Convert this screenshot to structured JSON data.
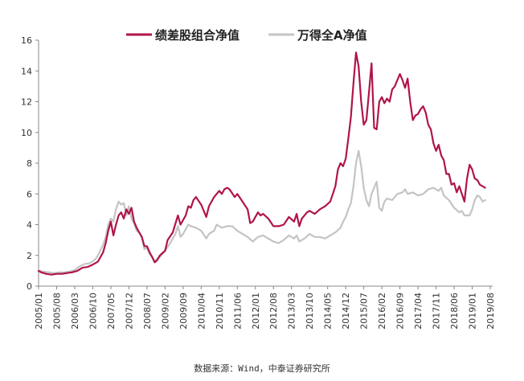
{
  "chart_data": {
    "type": "line",
    "title": "",
    "xlabel": "",
    "ylabel": "",
    "ylim": [
      0,
      16
    ],
    "yticks": [
      "0",
      "2",
      "4",
      "6",
      "8",
      "10",
      "12",
      "14",
      "16"
    ],
    "xticks": [
      "2005/01",
      "2005/08",
      "2006/03",
      "2006/10",
      "2007/05",
      "2007/12",
      "2008/07",
      "2009/02",
      "2009/09",
      "2010/04",
      "2010/11",
      "2011/06",
      "2012/01",
      "2012/08",
      "2013/03",
      "2013/10",
      "2014/05",
      "2014/12",
      "2015/07",
      "2016/02",
      "2016/09",
      "2017/04",
      "2017/11",
      "2018/06",
      "2019/01",
      "2019/08"
    ],
    "legend_position": "top-center",
    "grid": false,
    "series": [
      {
        "name": "绩差股组合净值",
        "color": "#b0144a",
        "points": [
          [
            "2005/01",
            1.0
          ],
          [
            "2005/02",
            0.9
          ],
          [
            "2005/04",
            0.8
          ],
          [
            "2005/06",
            0.75
          ],
          [
            "2005/08",
            0.8
          ],
          [
            "2005/10",
            0.8
          ],
          [
            "2005/12",
            0.85
          ],
          [
            "2006/02",
            0.9
          ],
          [
            "2006/04",
            1.0
          ],
          [
            "2006/06",
            1.2
          ],
          [
            "2006/08",
            1.25
          ],
          [
            "2006/10",
            1.4
          ],
          [
            "2006/12",
            1.6
          ],
          [
            "2007/02",
            2.2
          ],
          [
            "2007/03",
            2.8
          ],
          [
            "2007/04",
            3.6
          ],
          [
            "2007/05",
            4.2
          ],
          [
            "2007/06",
            3.3
          ],
          [
            "2007/07",
            4.0
          ],
          [
            "2007/08",
            4.6
          ],
          [
            "2007/09",
            4.8
          ],
          [
            "2007/10",
            4.4
          ],
          [
            "2007/11",
            5.0
          ],
          [
            "2007/12",
            4.7
          ],
          [
            "2008/01",
            5.1
          ],
          [
            "2008/02",
            4.2
          ],
          [
            "2008/03",
            3.8
          ],
          [
            "2008/04",
            3.5
          ],
          [
            "2008/05",
            3.2
          ],
          [
            "2008/06",
            2.6
          ],
          [
            "2008/07",
            2.6
          ],
          [
            "2008/08",
            2.2
          ],
          [
            "2008/09",
            1.9
          ],
          [
            "2008/10",
            1.55
          ],
          [
            "2008/11",
            1.7
          ],
          [
            "2008/12",
            2.0
          ],
          [
            "2009/02",
            2.3
          ],
          [
            "2009/03",
            3.0
          ],
          [
            "2009/05",
            3.5
          ],
          [
            "2009/07",
            4.6
          ],
          [
            "2009/08",
            4.0
          ],
          [
            "2009/09",
            4.3
          ],
          [
            "2009/10",
            4.6
          ],
          [
            "2009/11",
            5.2
          ],
          [
            "2009/12",
            5.1
          ],
          [
            "2010/01",
            5.6
          ],
          [
            "2010/02",
            5.8
          ],
          [
            "2010/04",
            5.3
          ],
          [
            "2010/06",
            4.5
          ],
          [
            "2010/07",
            5.2
          ],
          [
            "2010/09",
            5.8
          ],
          [
            "2010/11",
            6.2
          ],
          [
            "2010/12",
            6.0
          ],
          [
            "2011/01",
            6.3
          ],
          [
            "2011/02",
            6.4
          ],
          [
            "2011/03",
            6.3
          ],
          [
            "2011/05",
            5.8
          ],
          [
            "2011/06",
            6.0
          ],
          [
            "2011/08",
            5.5
          ],
          [
            "2011/10",
            5.0
          ],
          [
            "2011/11",
            4.1
          ],
          [
            "2011/12",
            4.2
          ],
          [
            "2012/02",
            4.8
          ],
          [
            "2012/03",
            4.6
          ],
          [
            "2012/04",
            4.7
          ],
          [
            "2012/06",
            4.4
          ],
          [
            "2012/08",
            3.9
          ],
          [
            "2012/10",
            3.9
          ],
          [
            "2012/12",
            4.0
          ],
          [
            "2013/02",
            4.5
          ],
          [
            "2013/04",
            4.2
          ],
          [
            "2013/05",
            4.7
          ],
          [
            "2013/06",
            3.9
          ],
          [
            "2013/07",
            4.4
          ],
          [
            "2013/09",
            4.8
          ],
          [
            "2013/10",
            4.9
          ],
          [
            "2013/12",
            4.7
          ],
          [
            "2014/02",
            5.0
          ],
          [
            "2014/04",
            5.2
          ],
          [
            "2014/06",
            5.5
          ],
          [
            "2014/07",
            6.0
          ],
          [
            "2014/08",
            6.5
          ],
          [
            "2014/09",
            7.6
          ],
          [
            "2014/10",
            8.0
          ],
          [
            "2014/11",
            7.8
          ],
          [
            "2014/12",
            8.3
          ],
          [
            "2015/01",
            9.6
          ],
          [
            "2015/02",
            11.0
          ],
          [
            "2015/03",
            13.2
          ],
          [
            "2015/04",
            15.2
          ],
          [
            "2015/05",
            14.3
          ],
          [
            "2015/06",
            12.0
          ],
          [
            "2015/07",
            10.5
          ],
          [
            "2015/08",
            10.8
          ],
          [
            "2015/09",
            12.6
          ],
          [
            "2015/10",
            14.5
          ],
          [
            "2015/11",
            10.3
          ],
          [
            "2015/12",
            10.2
          ],
          [
            "2016/01",
            12.0
          ],
          [
            "2016/02",
            12.3
          ],
          [
            "2016/03",
            11.9
          ],
          [
            "2016/04",
            12.2
          ],
          [
            "2016/05",
            12.0
          ],
          [
            "2016/06",
            12.8
          ],
          [
            "2016/07",
            13.0
          ],
          [
            "2016/08",
            13.4
          ],
          [
            "2016/09",
            13.8
          ],
          [
            "2016/10",
            13.4
          ],
          [
            "2016/11",
            12.9
          ],
          [
            "2016/12",
            13.5
          ],
          [
            "2017/01",
            12.0
          ],
          [
            "2017/02",
            10.8
          ],
          [
            "2017/03",
            11.1
          ],
          [
            "2017/04",
            11.2
          ],
          [
            "2017/05",
            11.5
          ],
          [
            "2017/06",
            11.7
          ],
          [
            "2017/07",
            11.3
          ],
          [
            "2017/08",
            10.5
          ],
          [
            "2017/09",
            10.2
          ],
          [
            "2017/10",
            9.3
          ],
          [
            "2017/11",
            8.8
          ],
          [
            "2017/12",
            9.2
          ],
          [
            "2018/01",
            8.5
          ],
          [
            "2018/02",
            8.2
          ],
          [
            "2018/03",
            7.3
          ],
          [
            "2018/04",
            7.3
          ],
          [
            "2018/05",
            6.6
          ],
          [
            "2018/06",
            6.7
          ],
          [
            "2018/07",
            6.1
          ],
          [
            "2018/08",
            6.5
          ],
          [
            "2018/09",
            6.0
          ],
          [
            "2018/10",
            5.5
          ],
          [
            "2018/11",
            7.0
          ],
          [
            "2018/12",
            7.9
          ],
          [
            "2019/01",
            7.6
          ],
          [
            "2019/02",
            7.0
          ],
          [
            "2019/03",
            6.9
          ],
          [
            "2019/04",
            6.6
          ],
          [
            "2019/05",
            6.5
          ],
          [
            "2019/06",
            6.4
          ]
        ]
      },
      {
        "name": "万得全A净值",
        "color": "#c4c4c4",
        "points": [
          [
            "2005/01",
            1.0
          ],
          [
            "2005/03",
            0.95
          ],
          [
            "2005/05",
            0.9
          ],
          [
            "2005/07",
            0.85
          ],
          [
            "2005/09",
            0.9
          ],
          [
            "2005/11",
            0.9
          ],
          [
            "2006/01",
            0.95
          ],
          [
            "2006/03",
            1.05
          ],
          [
            "2006/05",
            1.3
          ],
          [
            "2006/07",
            1.45
          ],
          [
            "2006/09",
            1.5
          ],
          [
            "2006/11",
            1.75
          ],
          [
            "2006/12",
            2.0
          ],
          [
            "2007/02",
            2.7
          ],
          [
            "2007/03",
            3.2
          ],
          [
            "2007/04",
            4.0
          ],
          [
            "2007/05",
            4.4
          ],
          [
            "2007/06",
            4.2
          ],
          [
            "2007/07",
            5.0
          ],
          [
            "2007/08",
            5.5
          ],
          [
            "2007/09",
            5.3
          ],
          [
            "2007/10",
            5.4
          ],
          [
            "2007/11",
            4.6
          ],
          [
            "2007/12",
            5.2
          ],
          [
            "2008/01",
            4.4
          ],
          [
            "2008/02",
            4.1
          ],
          [
            "2008/03",
            3.6
          ],
          [
            "2008/04",
            3.5
          ],
          [
            "2008/05",
            3.2
          ],
          [
            "2008/06",
            2.4
          ],
          [
            "2008/07",
            2.5
          ],
          [
            "2008/08",
            2.1
          ],
          [
            "2008/09",
            1.9
          ],
          [
            "2008/10",
            1.6
          ],
          [
            "2008/11",
            1.8
          ],
          [
            "2008/12",
            1.9
          ],
          [
            "2009/02",
            2.3
          ],
          [
            "2009/04",
            2.8
          ],
          [
            "2009/06",
            3.4
          ],
          [
            "2009/07",
            3.9
          ],
          [
            "2009/08",
            3.2
          ],
          [
            "2009/09",
            3.4
          ],
          [
            "2009/10",
            3.7
          ],
          [
            "2009/11",
            4.0
          ],
          [
            "2009/12",
            3.9
          ],
          [
            "2010/02",
            3.8
          ],
          [
            "2010/04",
            3.6
          ],
          [
            "2010/06",
            3.1
          ],
          [
            "2010/07",
            3.4
          ],
          [
            "2010/09",
            3.6
          ],
          [
            "2010/10",
            4.0
          ],
          [
            "2010/11",
            3.9
          ],
          [
            "2010/12",
            3.8
          ],
          [
            "2011/02",
            3.9
          ],
          [
            "2011/04",
            3.9
          ],
          [
            "2011/06",
            3.6
          ],
          [
            "2011/08",
            3.4
          ],
          [
            "2011/10",
            3.2
          ],
          [
            "2011/12",
            2.9
          ],
          [
            "2012/02",
            3.2
          ],
          [
            "2012/04",
            3.3
          ],
          [
            "2012/06",
            3.1
          ],
          [
            "2012/08",
            2.9
          ],
          [
            "2012/10",
            2.8
          ],
          [
            "2012/12",
            3.0
          ],
          [
            "2013/02",
            3.3
          ],
          [
            "2013/04",
            3.1
          ],
          [
            "2013/05",
            3.3
          ],
          [
            "2013/06",
            2.9
          ],
          [
            "2013/08",
            3.1
          ],
          [
            "2013/10",
            3.4
          ],
          [
            "2013/12",
            3.2
          ],
          [
            "2014/02",
            3.2
          ],
          [
            "2014/04",
            3.1
          ],
          [
            "2014/06",
            3.3
          ],
          [
            "2014/08",
            3.5
          ],
          [
            "2014/10",
            3.8
          ],
          [
            "2014/11",
            4.2
          ],
          [
            "2014/12",
            4.5
          ],
          [
            "2015/01",
            5.0
          ],
          [
            "2015/02",
            5.4
          ],
          [
            "2015/03",
            6.5
          ],
          [
            "2015/04",
            8.0
          ],
          [
            "2015/05",
            8.8
          ],
          [
            "2015/06",
            7.8
          ],
          [
            "2015/07",
            6.4
          ],
          [
            "2015/08",
            5.6
          ],
          [
            "2015/09",
            5.2
          ],
          [
            "2015/10",
            6.0
          ],
          [
            "2015/11",
            6.4
          ],
          [
            "2015/12",
            6.8
          ],
          [
            "2016/01",
            5.1
          ],
          [
            "2016/02",
            4.9
          ],
          [
            "2016/03",
            5.5
          ],
          [
            "2016/04",
            5.7
          ],
          [
            "2016/06",
            5.6
          ],
          [
            "2016/08",
            6.0
          ],
          [
            "2016/10",
            6.1
          ],
          [
            "2016/11",
            6.3
          ],
          [
            "2016/12",
            6.0
          ],
          [
            "2017/02",
            6.1
          ],
          [
            "2017/04",
            5.9
          ],
          [
            "2017/06",
            6.0
          ],
          [
            "2017/08",
            6.3
          ],
          [
            "2017/10",
            6.4
          ],
          [
            "2017/11",
            6.3
          ],
          [
            "2017/12",
            6.2
          ],
          [
            "2018/01",
            6.4
          ],
          [
            "2018/02",
            5.9
          ],
          [
            "2018/04",
            5.6
          ],
          [
            "2018/06",
            5.1
          ],
          [
            "2018/08",
            4.8
          ],
          [
            "2018/09",
            4.9
          ],
          [
            "2018/10",
            4.6
          ],
          [
            "2018/12",
            4.6
          ],
          [
            "2019/01",
            5.0
          ],
          [
            "2019/02",
            5.6
          ],
          [
            "2019/03",
            5.9
          ],
          [
            "2019/04",
            5.8
          ],
          [
            "2019/05",
            5.5
          ],
          [
            "2019/06",
            5.6
          ]
        ]
      }
    ]
  },
  "source_note": "数据来源：Wind，中泰证券研究所"
}
